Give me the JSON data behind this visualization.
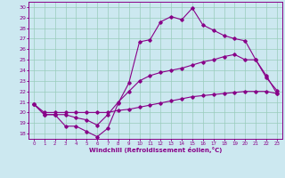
{
  "xlabel": "Windchill (Refroidissement éolien,°C)",
  "ylabel": "",
  "bg_color": "#cce8f0",
  "line_color": "#880088",
  "grid_color": "#99ccbb",
  "ylim": [
    17.5,
    30.5
  ],
  "xlim": [
    -0.5,
    23.5
  ],
  "yticks": [
    18,
    19,
    20,
    21,
    22,
    23,
    24,
    25,
    26,
    27,
    28,
    29,
    30
  ],
  "xticks": [
    0,
    1,
    2,
    3,
    4,
    5,
    6,
    7,
    8,
    9,
    10,
    11,
    12,
    13,
    14,
    15,
    16,
    17,
    18,
    19,
    20,
    21,
    22,
    23
  ],
  "line1": [
    20.8,
    19.8,
    19.8,
    18.7,
    18.7,
    18.2,
    17.7,
    18.5,
    20.9,
    22.8,
    26.7,
    26.9,
    28.6,
    29.1,
    28.8,
    29.9,
    28.3,
    27.8,
    27.3,
    27.0,
    26.8,
    25.0,
    23.3,
    22.1
  ],
  "line2": [
    20.8,
    19.8,
    19.8,
    19.8,
    19.5,
    19.3,
    18.8,
    19.8,
    21.0,
    22.0,
    23.0,
    23.5,
    23.8,
    24.0,
    24.2,
    24.5,
    24.8,
    25.0,
    25.3,
    25.5,
    25.0,
    25.0,
    23.5,
    21.8
  ],
  "line3": [
    20.8,
    20.0,
    20.0,
    20.0,
    20.0,
    20.0,
    20.0,
    20.0,
    20.2,
    20.3,
    20.5,
    20.7,
    20.9,
    21.1,
    21.3,
    21.5,
    21.6,
    21.7,
    21.8,
    21.9,
    22.0,
    22.0,
    22.0,
    21.8
  ]
}
